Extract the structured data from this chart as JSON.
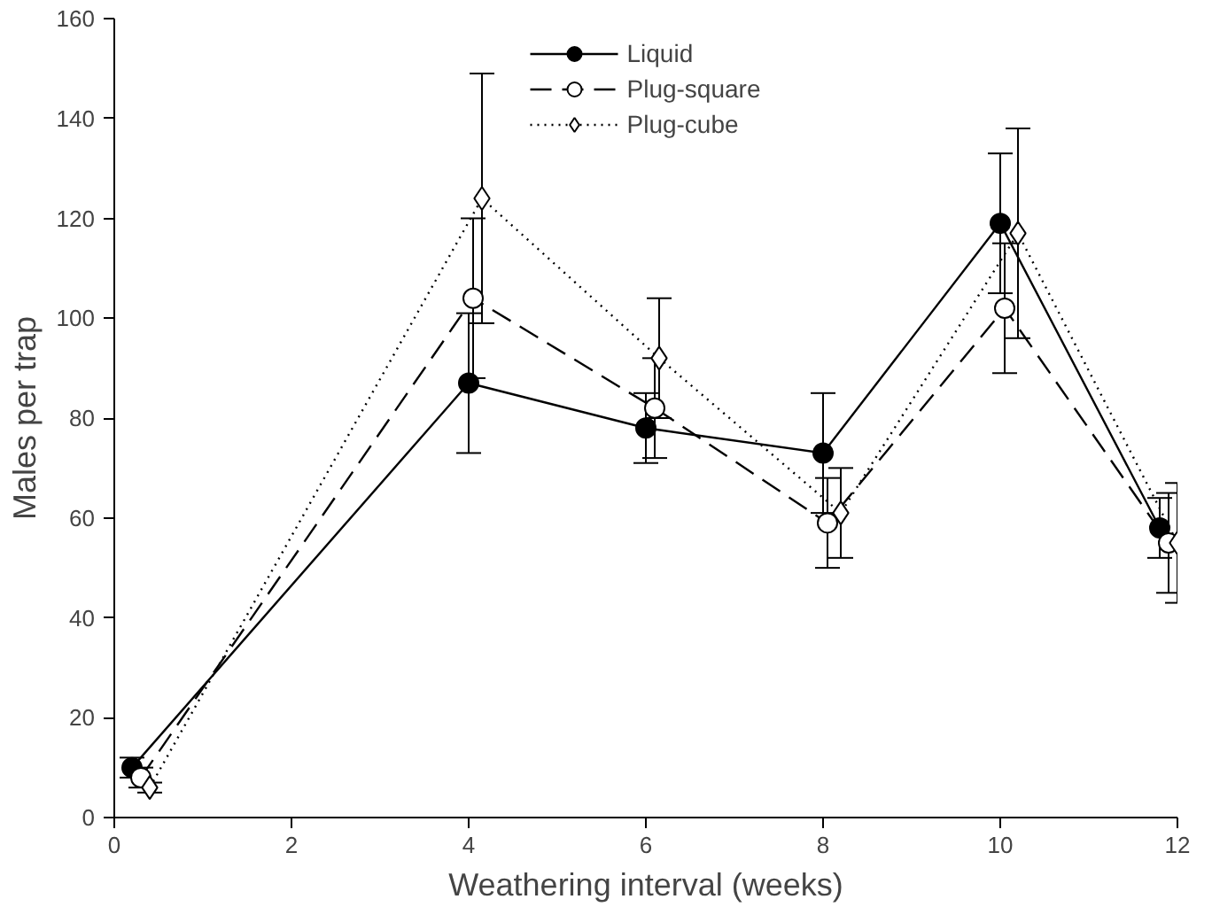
{
  "chart_data": {
    "type": "line",
    "xlabel": "Weathering interval (weeks)",
    "ylabel": "Males per trap",
    "xlim": [
      0,
      12
    ],
    "ylim": [
      0,
      160
    ],
    "xticks": [
      0,
      2,
      4,
      6,
      8,
      10,
      12
    ],
    "yticks": [
      0,
      20,
      40,
      60,
      80,
      100,
      120,
      140,
      160
    ],
    "grid": false,
    "legend": "top",
    "series": [
      {
        "name": "Liquid",
        "color": "#000000",
        "marker": "circle",
        "line_style": "solid",
        "x": [
          0.2,
          4.0,
          6.0,
          8.0,
          10.0,
          11.8
        ],
        "values": [
          10,
          87,
          78,
          73,
          119,
          58
        ],
        "errors": [
          2,
          14,
          7,
          12,
          14,
          6
        ]
      },
      {
        "name": "Plug-square",
        "color": "#000000",
        "marker": "circle",
        "line_style": "dashed",
        "x": [
          0.3,
          4.05,
          6.1,
          8.05,
          10.05,
          11.9
        ],
        "values": [
          8,
          104,
          82,
          59,
          102,
          55
        ],
        "errors": [
          2,
          16,
          10,
          9,
          13,
          10
        ]
      },
      {
        "name": "Plug-cube",
        "color": "#000000",
        "marker": "diamond",
        "line_style": "dotted",
        "x": [
          0.4,
          4.15,
          6.15,
          8.2,
          10.2,
          12.0
        ],
        "values": [
          6,
          124,
          92,
          61,
          117,
          55
        ],
        "errors": [
          1,
          25,
          12,
          9,
          21,
          12
        ]
      }
    ]
  }
}
